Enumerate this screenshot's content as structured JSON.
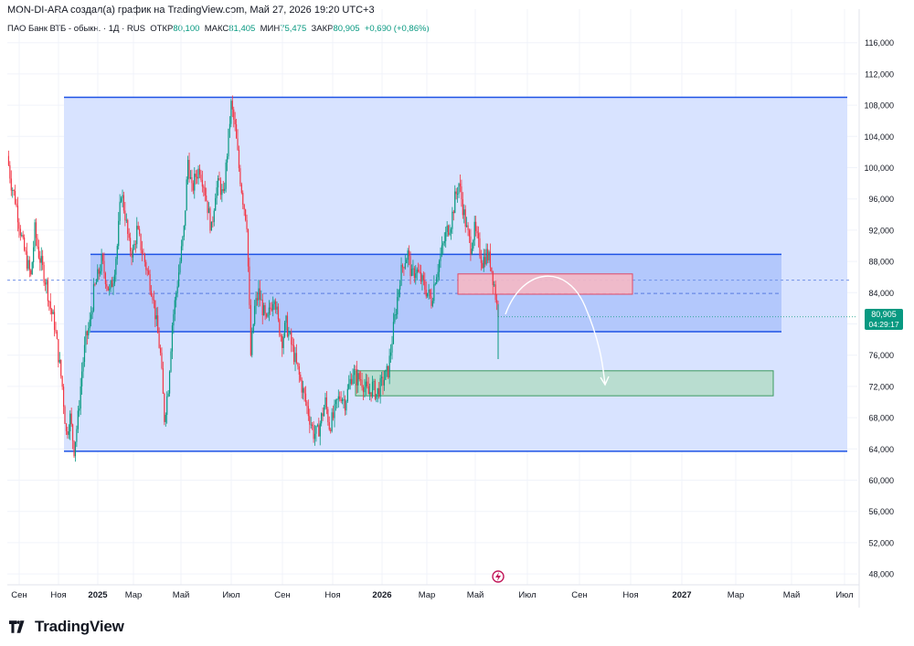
{
  "header": {
    "attribution": "MON-DI-ARA создал(а) график на TradingView.com, Май 27, 2026 19:20 UTC+3"
  },
  "legend": {
    "symbol": "ПАО Банк ВТБ - обыкн. · 1Д · RUS",
    "open_label": "ОТКР",
    "open_value": "80,100",
    "high_label": "МАКС",
    "high_value": "81,405",
    "low_label": "МИН",
    "low_value": "75,475",
    "close_label": "ЗАКР",
    "close_value": "80,905",
    "change": "+0,690 (+0,86%)"
  },
  "price_badge": {
    "price": "80,905",
    "countdown": "04:29:17",
    "color": "#089981"
  },
  "brand": {
    "name": "TradingView"
  },
  "colors": {
    "up": "#089981",
    "down": "#f23645",
    "band_fill": "#d6e2ff",
    "band_line": "#1e53e5"
  },
  "chart_data": {
    "type": "candlestick",
    "y_axis": {
      "ticks": [
        "116,000",
        "112,000",
        "108,000",
        "104,000",
        "100,000",
        "96,000",
        "92,000",
        "88,000",
        "84,000",
        "80,000",
        "76,000",
        "72,000",
        "68,000",
        "64,000",
        "60,000",
        "56,000",
        "52,000",
        "48,000"
      ],
      "range": [
        46,
        117
      ]
    },
    "x_axis": {
      "ticks": [
        "Сен",
        "Ноя",
        "2025",
        "Мар",
        "Май",
        "Июл",
        "Сен",
        "Ноя",
        "2026",
        "Мар",
        "Май",
        "Июл",
        "Сен",
        "Ноя",
        "2027",
        "Мар",
        "Май",
        "Июл"
      ],
      "bold_ticks": [
        "2025",
        "2026",
        "2027"
      ]
    },
    "last_price": 80.905,
    "drawings": {
      "wide_channel": {
        "top": 109,
        "bottom": 63.7
      },
      "inner_range": {
        "top": 88.9,
        "bottom": 79.0,
        "midline": 83.9
      },
      "dashed_level": 85.6,
      "sell_zone": {
        "top": 86.4,
        "bottom": 83.8
      },
      "target_zone": {
        "top": 74.0,
        "bottom": 70.8
      }
    },
    "price_path": [
      [
        0,
        101.5
      ],
      [
        3,
        98
      ],
      [
        6,
        96
      ],
      [
        9,
        93
      ],
      [
        12,
        90
      ],
      [
        15,
        88
      ],
      [
        18,
        86
      ],
      [
        21,
        92
      ],
      [
        24,
        89
      ],
      [
        27,
        87
      ],
      [
        30,
        85
      ],
      [
        33,
        82
      ],
      [
        36,
        80
      ],
      [
        39,
        76
      ],
      [
        42,
        72
      ],
      [
        45,
        66
      ],
      [
        48,
        68
      ],
      [
        51,
        64
      ],
      [
        54,
        68
      ],
      [
        57,
        74
      ],
      [
        60,
        78
      ],
      [
        63,
        80
      ],
      [
        66,
        84
      ],
      [
        69,
        86
      ],
      [
        72,
        88
      ],
      [
        75,
        86
      ],
      [
        78,
        84
      ],
      [
        81,
        86
      ],
      [
        84,
        90
      ],
      [
        87,
        97
      ],
      [
        90,
        94
      ],
      [
        93,
        90
      ],
      [
        96,
        89
      ],
      [
        99,
        92
      ],
      [
        102,
        90
      ],
      [
        105,
        88
      ],
      [
        108,
        86
      ],
      [
        111,
        84
      ],
      [
        114,
        80
      ],
      [
        117,
        76
      ],
      [
        120,
        68
      ],
      [
        123,
        72
      ],
      [
        126,
        80
      ],
      [
        129,
        84
      ],
      [
        132,
        88
      ],
      [
        135,
        92
      ],
      [
        138,
        101
      ],
      [
        141,
        97
      ],
      [
        144,
        99
      ],
      [
        147,
        100
      ],
      [
        150,
        98
      ],
      [
        153,
        95
      ],
      [
        156,
        92
      ],
      [
        159,
        97
      ],
      [
        162,
        98
      ],
      [
        165,
        96
      ],
      [
        168,
        102
      ],
      [
        171,
        108
      ],
      [
        174,
        105
      ],
      [
        177,
        100
      ],
      [
        180,
        96
      ],
      [
        183,
        93
      ],
      [
        186,
        76
      ],
      [
        189,
        82
      ],
      [
        192,
        84
      ],
      [
        195,
        82
      ],
      [
        198,
        80
      ],
      [
        201,
        82
      ],
      [
        204,
        84
      ],
      [
        207,
        80
      ],
      [
        210,
        78
      ],
      [
        213,
        80
      ],
      [
        216,
        78
      ],
      [
        219,
        76
      ],
      [
        222,
        74
      ],
      [
        225,
        72
      ],
      [
        228,
        70
      ],
      [
        231,
        68
      ],
      [
        234,
        66
      ],
      [
        237,
        66
      ],
      [
        240,
        68
      ],
      [
        243,
        70
      ],
      [
        246,
        67
      ],
      [
        249,
        68
      ],
      [
        252,
        70
      ],
      [
        255,
        71
      ],
      [
        258,
        70
      ],
      [
        261,
        72
      ],
      [
        264,
        74
      ],
      [
        267,
        73
      ],
      [
        270,
        73
      ],
      [
        273,
        72
      ],
      [
        276,
        71
      ],
      [
        279,
        72
      ],
      [
        282,
        71
      ],
      [
        285,
        72
      ],
      [
        288,
        73
      ],
      [
        291,
        74
      ],
      [
        294,
        78
      ],
      [
        297,
        82
      ],
      [
        300,
        86
      ],
      [
        303,
        88
      ],
      [
        306,
        89
      ],
      [
        309,
        86
      ],
      [
        312,
        87
      ],
      [
        315,
        86
      ],
      [
        318,
        85
      ],
      [
        321,
        84
      ],
      [
        324,
        83
      ],
      [
        327,
        86
      ],
      [
        330,
        88
      ],
      [
        333,
        90
      ],
      [
        336,
        92
      ],
      [
        339,
        93
      ],
      [
        342,
        96
      ],
      [
        345,
        98
      ],
      [
        348,
        95
      ],
      [
        351,
        92
      ],
      [
        354,
        90
      ],
      [
        357,
        92
      ],
      [
        360,
        90
      ],
      [
        363,
        88
      ],
      [
        366,
        89
      ],
      [
        369,
        88
      ],
      [
        372,
        85
      ],
      [
        375,
        80.9
      ]
    ]
  }
}
